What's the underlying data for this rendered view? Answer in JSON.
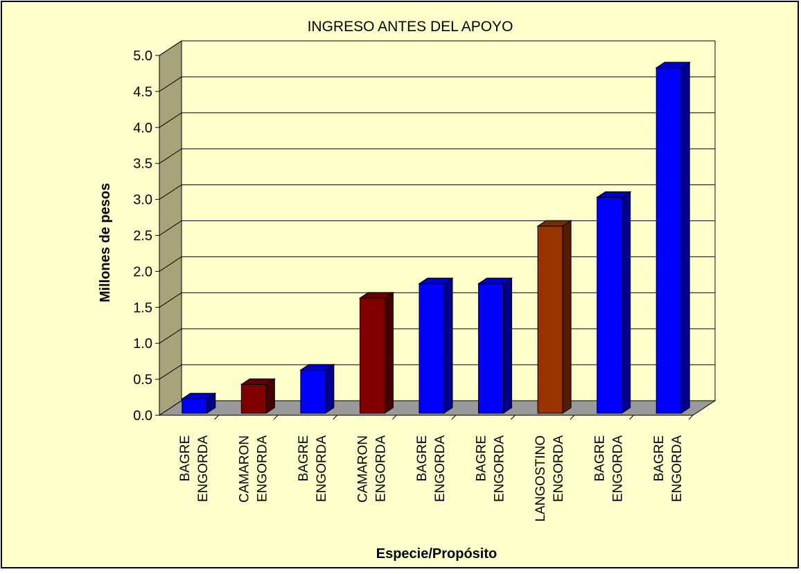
{
  "chart_data": {
    "type": "bar3d",
    "title": "INGRESO ANTES DEL APOYO",
    "x_label": "Especie/Propósito",
    "y_label": "Millones de pesos",
    "categories": [
      [
        "BAGRE",
        "ENGORDA"
      ],
      [
        "CAMARON",
        "ENGORDA"
      ],
      [
        "BAGRE",
        "ENGORDA"
      ],
      [
        "CAMARON",
        "ENGORDA"
      ],
      [
        "BAGRE",
        "ENGORDA"
      ],
      [
        "BAGRE",
        "ENGORDA"
      ],
      [
        "LANGOSTINO",
        "ENGORDA"
      ],
      [
        "BAGRE",
        "ENGORDA"
      ],
      [
        "BAGRE",
        "ENGORDA"
      ]
    ],
    "values": [
      0.2,
      0.4,
      0.6,
      1.6,
      1.8,
      1.8,
      2.6,
      3.0,
      4.8
    ],
    "colors": [
      "#0000ff",
      "#800000",
      "#0000ff",
      "#800000",
      "#0000ff",
      "#0000ff",
      "#993300",
      "#0000ff",
      "#0000ff"
    ],
    "ylim": [
      0,
      5
    ],
    "yticks": [
      {
        "value": 0,
        "label": "0.0"
      },
      {
        "value": 0.5,
        "label": "0.5"
      },
      {
        "value": 1,
        "label": "1.0"
      },
      {
        "value": 1.5,
        "label": "1.5"
      },
      {
        "value": 2,
        "label": "2.0"
      },
      {
        "value": 2.5,
        "label": "2.5"
      },
      {
        "value": 3,
        "label": "3.0"
      },
      {
        "value": 3.5,
        "label": "3.5"
      },
      {
        "value": 4,
        "label": "4.0"
      },
      {
        "value": 4.5,
        "label": "4.5"
      },
      {
        "value": 5,
        "label": "5.0"
      }
    ],
    "grid": true
  }
}
